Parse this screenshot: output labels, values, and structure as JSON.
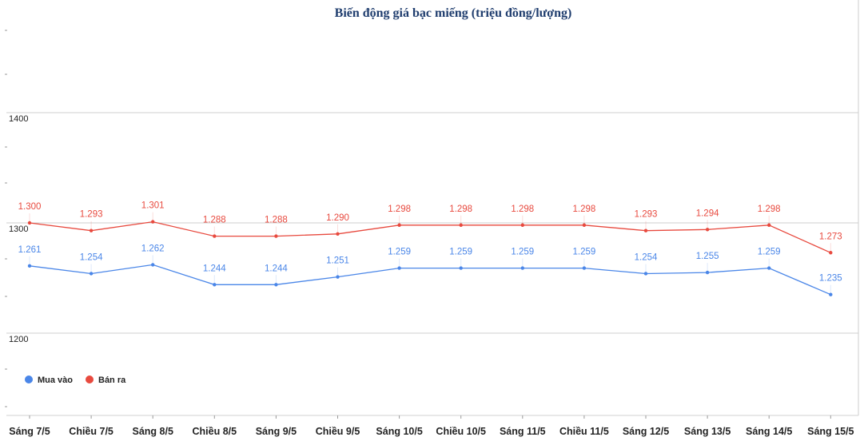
{
  "chart_data": {
    "type": "line",
    "title": "Biến động giá bạc miếng (triệu đồng/lượng)",
    "xlabel": "",
    "ylabel": "",
    "ylim": [
      1140,
      1450
    ],
    "yticks": [
      1200,
      1300,
      1400
    ],
    "grid": true,
    "legend_position": "bottom-left",
    "categories": [
      "Sáng 7/5",
      "Chiều 7/5",
      "Sáng 8/5",
      "Chiều 8/5",
      "Sáng 9/5",
      "Chiều 9/5",
      "Sáng 10/5",
      "Chiều 10/5",
      "Sáng 11/5",
      "Chiều 11/5",
      "Sáng 12/5",
      "Sáng 13/5",
      "Sáng 14/5",
      "Sáng 15/5"
    ],
    "series": [
      {
        "name": "Mua vào",
        "color": "#4a86e8",
        "values": [
          1261,
          1254,
          1262,
          1244,
          1244,
          1251,
          1259,
          1259,
          1259,
          1259,
          1254,
          1255,
          1259,
          1235
        ],
        "labels": [
          "1.261",
          "1.254",
          "1.262",
          "1.244",
          "1.244",
          "1.251",
          "1.259",
          "1.259",
          "1.259",
          "1.259",
          "1.254",
          "1.255",
          "1.259",
          "1.235"
        ]
      },
      {
        "name": "Bán ra",
        "color": "#e84a3f",
        "values": [
          1300,
          1293,
          1301,
          1288,
          1288,
          1290,
          1298,
          1298,
          1298,
          1298,
          1293,
          1294,
          1298,
          1273
        ],
        "labels": [
          "1.300",
          "1.293",
          "1.301",
          "1.288",
          "1.288",
          "1.290",
          "1.298",
          "1.298",
          "1.298",
          "1.298",
          "1.293",
          "1.294",
          "1.298",
          "1.273"
        ]
      }
    ]
  }
}
